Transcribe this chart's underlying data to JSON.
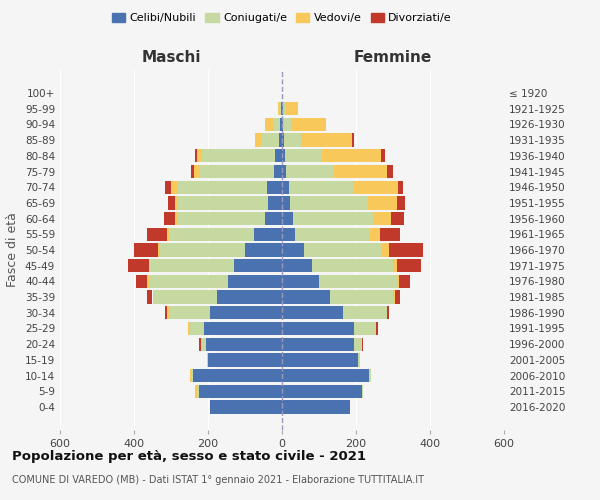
{
  "age_groups": [
    "0-4",
    "5-9",
    "10-14",
    "15-19",
    "20-24",
    "25-29",
    "30-34",
    "35-39",
    "40-44",
    "45-49",
    "50-54",
    "55-59",
    "60-64",
    "65-69",
    "70-74",
    "75-79",
    "80-84",
    "85-89",
    "90-94",
    "95-99",
    "100+"
  ],
  "birth_years": [
    "2016-2020",
    "2011-2015",
    "2006-2010",
    "2001-2005",
    "1996-2000",
    "1991-1995",
    "1986-1990",
    "1981-1985",
    "1976-1980",
    "1971-1975",
    "1966-1970",
    "1961-1965",
    "1956-1960",
    "1951-1955",
    "1946-1950",
    "1941-1945",
    "1936-1940",
    "1931-1935",
    "1926-1930",
    "1921-1925",
    "≤ 1920"
  ],
  "maschi": {
    "celibi": [
      195,
      225,
      240,
      200,
      205,
      210,
      195,
      175,
      145,
      130,
      100,
      75,
      45,
      38,
      40,
      22,
      20,
      8,
      5,
      2,
      0
    ],
    "coniugati": [
      0,
      5,
      5,
      2,
      10,
      40,
      110,
      175,
      215,
      230,
      230,
      230,
      240,
      245,
      245,
      200,
      195,
      50,
      20,
      5,
      0
    ],
    "vedovi": [
      0,
      5,
      5,
      0,
      5,
      5,
      5,
      0,
      5,
      0,
      5,
      5,
      5,
      5,
      15,
      15,
      15,
      15,
      20,
      5,
      0
    ],
    "divorziati": [
      0,
      0,
      0,
      0,
      5,
      0,
      5,
      15,
      30,
      55,
      65,
      55,
      30,
      20,
      15,
      10,
      5,
      0,
      0,
      0,
      0
    ]
  },
  "femmine": {
    "nubili": [
      185,
      215,
      235,
      205,
      195,
      195,
      165,
      130,
      100,
      80,
      60,
      35,
      30,
      22,
      18,
      10,
      8,
      5,
      3,
      2,
      0
    ],
    "coniugate": [
      0,
      5,
      5,
      5,
      20,
      60,
      120,
      170,
      210,
      220,
      210,
      200,
      215,
      210,
      175,
      130,
      100,
      45,
      20,
      5,
      0
    ],
    "vedove": [
      0,
      0,
      0,
      0,
      0,
      0,
      0,
      5,
      5,
      10,
      20,
      30,
      50,
      80,
      120,
      145,
      160,
      140,
      95,
      35,
      0
    ],
    "divorziate": [
      0,
      0,
      0,
      0,
      5,
      5,
      5,
      15,
      30,
      65,
      90,
      55,
      35,
      20,
      15,
      15,
      10,
      5,
      0,
      0,
      0
    ]
  },
  "colors": {
    "celibi": "#4b72b0",
    "coniugati": "#c5d9a0",
    "vedovi": "#f9c85a",
    "divorziati": "#c0392b"
  },
  "xlim": 600,
  "title": "Popolazione per età, sesso e stato civile - 2021",
  "subtitle": "COMUNE DI VAREDO (MB) - Dati ISTAT 1° gennaio 2021 - Elaborazione TUTTITALIA.IT",
  "xlabel_left": "Maschi",
  "xlabel_right": "Femmine",
  "ylabel_left": "Fasce di età",
  "background_color": "#f5f5f5",
  "legend_labels": [
    "Celibi/Nubili",
    "Coniugati/e",
    "Vedovi/e",
    "Divorziati/e"
  ]
}
